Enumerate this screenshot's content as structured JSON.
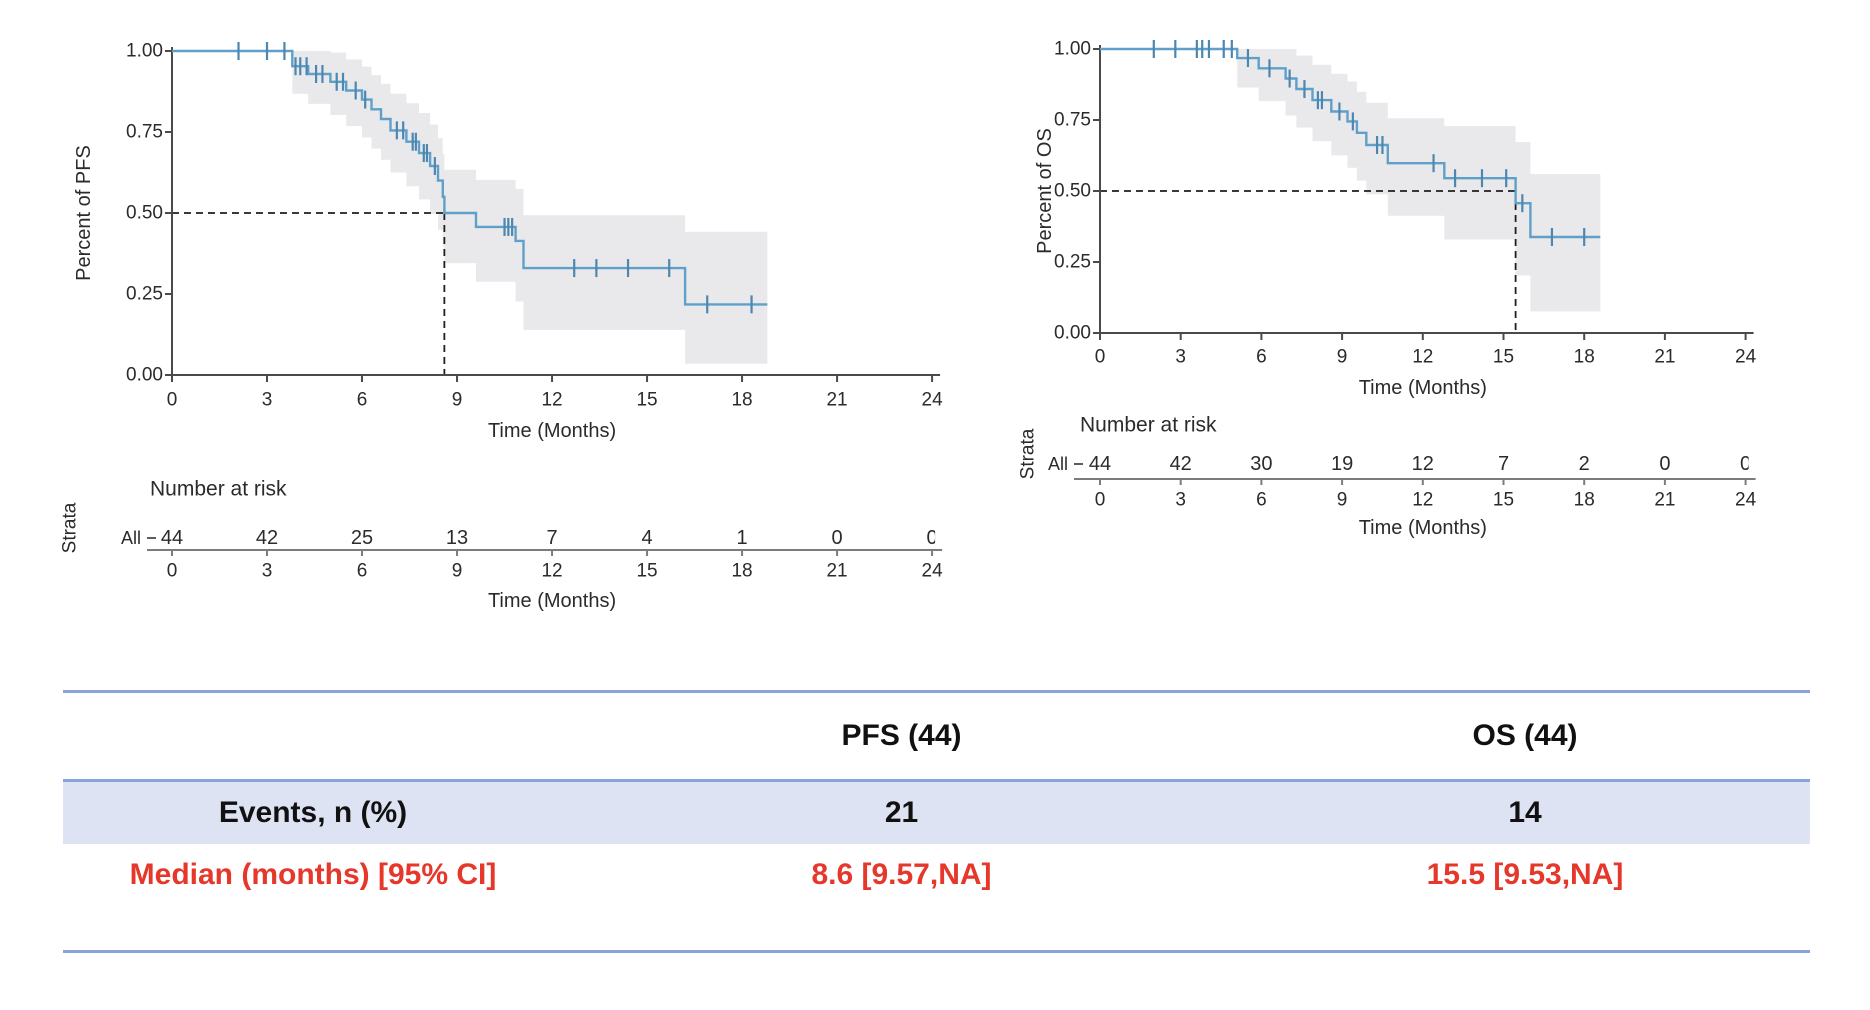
{
  "chart_data": [
    {
      "type": "km_survival",
      "id": "pfs",
      "y_label": "Percent of PFS",
      "x_label": "Time (Months)",
      "x_ticks": [
        0,
        3,
        6,
        9,
        12,
        15,
        18,
        21,
        24
      ],
      "y_ticks": [
        "1.00",
        "0.75",
        "0.50",
        "0.25",
        "0.00"
      ],
      "xlim": [
        0,
        24
      ],
      "ylim": [
        0,
        1
      ],
      "median_time": 8.6,
      "median_survival_fraction": 0.5,
      "steps": [
        [
          0,
          1.0
        ],
        [
          3.8,
          0.953
        ],
        [
          4.3,
          0.929
        ],
        [
          5.0,
          0.905
        ],
        [
          5.5,
          0.878
        ],
        [
          6.0,
          0.85
        ],
        [
          6.3,
          0.82
        ],
        [
          6.6,
          0.79
        ],
        [
          6.9,
          0.755
        ],
        [
          7.4,
          0.72
        ],
        [
          7.8,
          0.685
        ],
        [
          8.15,
          0.645
        ],
        [
          8.4,
          0.6
        ],
        [
          8.55,
          0.55
        ],
        [
          8.6,
          0.5
        ],
        [
          9.6,
          0.457
        ],
        [
          10.85,
          0.414
        ],
        [
          11.1,
          0.33
        ],
        [
          16.2,
          0.218
        ]
      ],
      "end_time": 18.8,
      "censor_times": [
        2.1,
        3.0,
        3.55,
        3.9,
        4.05,
        4.25,
        4.55,
        4.75,
        5.2,
        5.4,
        5.8,
        6.1,
        7.1,
        7.3,
        7.6,
        7.7,
        7.95,
        8.05,
        8.3,
        10.5,
        10.62,
        10.74,
        12.7,
        13.4,
        14.4,
        15.7,
        16.9,
        18.3
      ],
      "risk_table": {
        "title": "Number at risk",
        "axis_label": "Strata",
        "group": "All",
        "times": [
          0,
          3,
          6,
          9,
          12,
          15,
          18,
          21,
          24
        ],
        "values": [
          44,
          42,
          25,
          13,
          7,
          4,
          1,
          0,
          0
        ],
        "x_label": "Time (Months)"
      }
    },
    {
      "type": "km_survival",
      "id": "os",
      "y_label": "Percent of OS",
      "x_label": "Time (Months)",
      "x_ticks": [
        0,
        3,
        6,
        9,
        12,
        15,
        18,
        21,
        24
      ],
      "y_ticks": [
        "1.00",
        "0.75",
        "0.50",
        "0.25",
        "0.00"
      ],
      "xlim": [
        0,
        24
      ],
      "ylim": [
        0,
        1
      ],
      "median_time": 15.45,
      "median_survival_fraction": 0.5,
      "steps": [
        [
          0,
          1.0
        ],
        [
          5.1,
          0.968
        ],
        [
          5.9,
          0.932
        ],
        [
          6.9,
          0.896
        ],
        [
          7.3,
          0.859
        ],
        [
          7.9,
          0.82
        ],
        [
          8.6,
          0.78
        ],
        [
          9.2,
          0.745
        ],
        [
          9.55,
          0.705
        ],
        [
          9.9,
          0.662
        ],
        [
          10.7,
          0.598
        ],
        [
          12.8,
          0.545
        ],
        [
          15.45,
          0.457
        ],
        [
          16.0,
          0.338
        ]
      ],
      "end_time": 18.6,
      "censor_times": [
        2.0,
        2.8,
        3.6,
        3.8,
        4.05,
        4.6,
        4.9,
        5.5,
        6.3,
        7.05,
        7.6,
        8.1,
        8.25,
        8.9,
        9.4,
        10.3,
        10.5,
        12.4,
        13.2,
        14.2,
        15.1,
        15.7,
        16.8,
        18.0
      ],
      "risk_table": {
        "title": "Number at risk",
        "axis_label": "Strata",
        "group": "All",
        "times": [
          0,
          3,
          6,
          9,
          12,
          15,
          18,
          21,
          24
        ],
        "values": [
          44,
          42,
          30,
          19,
          12,
          7,
          2,
          0,
          0
        ],
        "x_label": "Time (Months)"
      }
    }
  ],
  "summary_table": {
    "header": {
      "col1": "",
      "col2": "PFS (44)",
      "col3": "OS (44)"
    },
    "rows": [
      {
        "label": "Events, n (%)",
        "pfs": "21",
        "os": "14"
      },
      {
        "label": "Median (months) [95% CI]",
        "pfs": "8.6 [9.57,NA]",
        "os": "15.5 [9.53,NA]"
      }
    ]
  },
  "colors": {
    "curve": "#5ea0c9",
    "censor": "#4d87b0",
    "ci_band": "#e9e9eb",
    "axis": "#4a4a4a",
    "risk_axis": "#7c7c7c",
    "text": "#2b2b2b",
    "strata_all": "#a5c8e1",
    "dashed": "#1f1f1f",
    "table_line": "#8aa3d8",
    "table_row_bg": "#dee3f4",
    "table_highlight": "#e6372b"
  }
}
